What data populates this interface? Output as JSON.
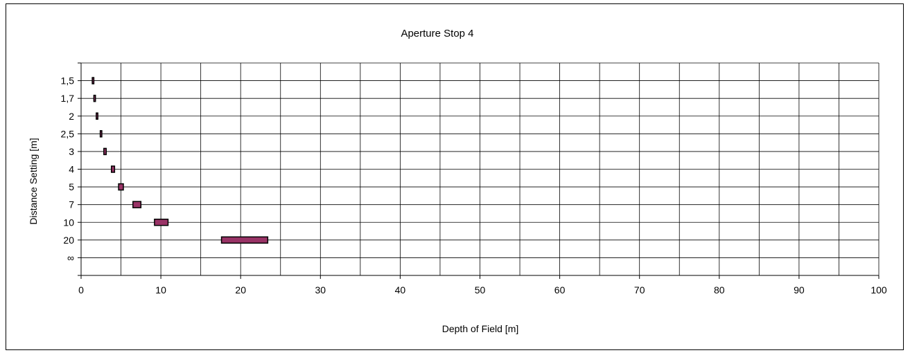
{
  "chart_data": {
    "type": "bar",
    "orientation": "horizontal",
    "title": "Aperture Stop 4",
    "xlabel": "Depth of Field [m]",
    "ylabel": "Distance Setting [m]",
    "xlim": [
      0,
      100
    ],
    "x_major_ticks": [
      0,
      10,
      20,
      30,
      40,
      50,
      60,
      70,
      80,
      90,
      100
    ],
    "x_minor_interval": 5,
    "grid": true,
    "legend": "none",
    "categories": [
      "1,5",
      "1,7",
      "2",
      "2,5",
      "3",
      "4",
      "5",
      "7",
      "10",
      "20",
      "∞"
    ],
    "ranges": [
      [
        1.4,
        1.6
      ],
      [
        1.6,
        1.8
      ],
      [
        1.9,
        2.1
      ],
      [
        2.4,
        2.6
      ],
      [
        2.85,
        3.15
      ],
      [
        3.8,
        4.2
      ],
      [
        4.7,
        5.3
      ],
      [
        6.5,
        7.5
      ],
      [
        9.2,
        10.9
      ],
      [
        17.6,
        23.4
      ],
      null
    ],
    "bar_color": "#993366",
    "edge_color": "#000000"
  }
}
